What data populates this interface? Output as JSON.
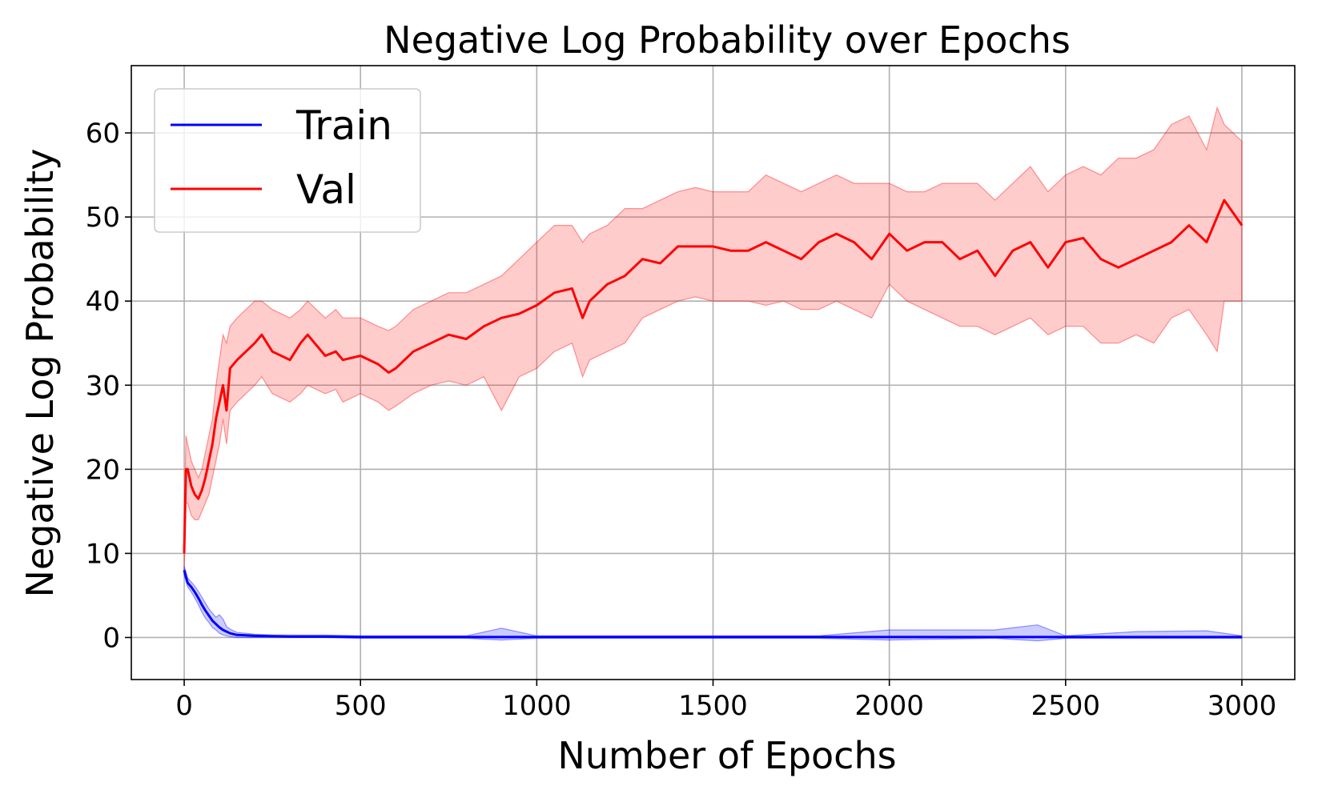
{
  "chart_data": {
    "type": "line",
    "title": "Negative Log Probability over Epochs",
    "xlabel": "Number of Epochs",
    "ylabel": "Negative Log Probability",
    "xlim": [
      -150,
      3150
    ],
    "ylim": [
      -5,
      68
    ],
    "xticks": [
      0,
      500,
      1000,
      1500,
      2000,
      2500,
      3000
    ],
    "yticks": [
      0,
      10,
      20,
      30,
      40,
      50,
      60
    ],
    "grid": true,
    "legend_position": "top-left",
    "series": [
      {
        "name": "Train",
        "color": "#0000ff",
        "band_color": "#0000ff",
        "x": [
          0,
          5,
          10,
          20,
          30,
          40,
          50,
          60,
          70,
          80,
          90,
          100,
          110,
          120,
          130,
          150,
          175,
          200,
          250,
          300,
          400,
          500,
          600,
          700,
          800,
          900,
          1000,
          1200,
          1500,
          1800,
          2000,
          2300,
          2420,
          2500,
          2700,
          2900,
          3000
        ],
        "mean": [
          8.0,
          7.2,
          6.5,
          6.0,
          5.4,
          4.7,
          3.9,
          3.2,
          2.6,
          2.0,
          1.6,
          1.2,
          0.9,
          0.7,
          0.5,
          0.3,
          0.25,
          0.2,
          0.15,
          0.1,
          0.1,
          0.05,
          0.05,
          0.05,
          0.05,
          0.05,
          0.05,
          0.05,
          0.05,
          0.05,
          0.05,
          0.05,
          0.05,
          0.05,
          0.05,
          0.05,
          0.05
        ],
        "lower": [
          7.5,
          6.7,
          6.0,
          5.4,
          4.7,
          3.9,
          3.0,
          2.3,
          1.8,
          1.2,
          0.9,
          0.5,
          0.3,
          0.2,
          0.1,
          0.0,
          0.0,
          0.0,
          0.0,
          0.0,
          0.0,
          -0.1,
          -0.1,
          -0.1,
          -0.1,
          -0.3,
          -0.1,
          -0.1,
          -0.1,
          -0.1,
          -0.3,
          -0.1,
          -0.4,
          -0.1,
          -0.1,
          -0.1,
          -0.1
        ],
        "upper": [
          8.5,
          7.8,
          7.1,
          6.6,
          6.1,
          5.5,
          4.8,
          4.1,
          3.4,
          2.9,
          2.4,
          2.7,
          2.2,
          1.3,
          1.0,
          0.6,
          0.5,
          0.4,
          0.3,
          0.3,
          0.3,
          0.2,
          0.2,
          0.2,
          0.2,
          1.1,
          0.2,
          0.2,
          0.2,
          0.2,
          0.9,
          0.9,
          1.5,
          0.2,
          0.7,
          0.8,
          0.2
        ]
      },
      {
        "name": "Val",
        "color": "#ff0000",
        "band_color": "#ff0000",
        "x": [
          0,
          5,
          10,
          20,
          30,
          40,
          50,
          60,
          70,
          80,
          90,
          100,
          110,
          120,
          130,
          150,
          175,
          200,
          220,
          250,
          300,
          330,
          350,
          400,
          430,
          450,
          500,
          550,
          580,
          600,
          650,
          700,
          750,
          800,
          850,
          900,
          950,
          1000,
          1050,
          1100,
          1130,
          1150,
          1200,
          1250,
          1300,
          1350,
          1400,
          1450,
          1500,
          1550,
          1600,
          1650,
          1700,
          1750,
          1800,
          1850,
          1900,
          1950,
          2000,
          2050,
          2100,
          2150,
          2200,
          2250,
          2300,
          2350,
          2400,
          2450,
          2500,
          2550,
          2600,
          2650,
          2700,
          2750,
          2800,
          2850,
          2900,
          2930,
          2950,
          3000
        ],
        "mean": [
          10,
          20,
          20,
          18,
          17,
          16.5,
          17.5,
          19,
          21,
          23,
          26,
          28,
          30,
          27,
          32,
          33,
          34,
          35,
          36,
          34,
          33,
          35,
          36,
          33.5,
          34,
          33,
          33.5,
          32.5,
          31.5,
          32,
          34,
          35,
          36,
          35.5,
          37,
          38,
          38.5,
          39.5,
          41,
          41.5,
          38,
          40,
          42,
          43,
          45,
          44.5,
          46.5,
          46.5,
          46.5,
          46,
          46,
          47,
          46,
          45,
          47,
          48,
          47,
          45,
          48,
          46,
          47,
          47,
          45,
          46,
          43,
          46,
          47,
          44,
          47,
          47.5,
          45,
          44,
          45,
          46,
          47,
          49,
          47,
          50,
          52,
          49
        ],
        "lower": [
          8,
          16,
          16,
          14.5,
          14,
          14,
          15,
          16,
          17,
          19,
          21,
          23,
          26,
          23,
          27,
          28,
          29,
          30,
          31,
          29,
          28,
          29,
          30,
          29,
          29.5,
          28,
          29,
          28,
          27,
          27.5,
          29,
          30,
          30.5,
          30,
          31,
          27,
          31,
          32,
          34,
          35,
          31,
          33,
          34,
          35,
          38,
          39,
          40,
          40.5,
          40,
          40,
          40,
          39.5,
          40,
          39,
          39,
          40,
          39,
          38,
          42,
          40,
          39,
          38,
          37,
          37,
          36,
          37,
          38,
          36,
          37,
          37,
          35,
          35,
          36,
          35,
          38,
          39,
          36,
          34,
          40,
          40
        ],
        "upper": [
          12,
          24,
          23,
          21,
          20,
          19,
          20,
          22,
          24,
          26,
          30,
          33,
          36,
          35,
          37,
          38,
          39,
          40,
          40,
          39,
          38,
          39,
          40,
          38,
          39,
          38,
          38,
          37,
          36.5,
          37,
          39,
          40,
          41,
          41,
          42,
          43,
          45,
          47,
          49,
          49,
          47,
          48,
          49,
          51,
          51,
          52,
          53,
          53.5,
          53,
          53,
          53,
          55,
          54,
          53,
          54,
          55,
          54,
          54,
          54,
          53,
          53,
          54,
          54,
          54,
          52,
          54,
          56,
          53,
          55,
          56,
          55,
          57,
          57,
          58,
          61,
          62,
          58,
          63,
          61,
          59
        ]
      }
    ]
  }
}
